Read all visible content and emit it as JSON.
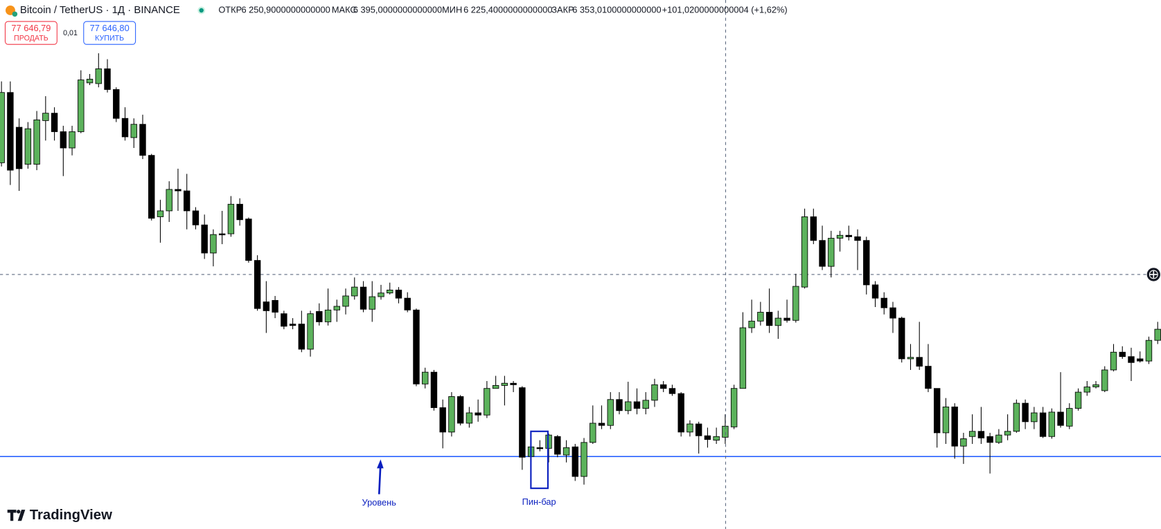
{
  "header": {
    "symbol": "Bitcoin / TetherUS · 1Д · BINANCE",
    "open_label": "ОТКР",
    "open": "6 250,9000000000000",
    "high_label": "МАКС",
    "high": "6 395,0000000000000",
    "low_label": "МИН",
    "low": "6 225,4000000000000",
    "close_label": "ЗАКР",
    "close": "6 353,0100000000000",
    "change": "+101,0200000000004 (+1,62%)"
  },
  "trade": {
    "sell_price": "77 646,79",
    "sell_label": "ПРОДАТЬ",
    "spread": "0,01",
    "buy_price": "77 646,80",
    "buy_label": "КУПИТЬ"
  },
  "brand": "TradingView",
  "chart_data": {
    "type": "candlestick",
    "up_color": "#5cb25c",
    "down_color": "#000000",
    "ylim": [
      300,
      1000
    ],
    "level": 383,
    "level_color": "#2962ff",
    "level_label": "Уровень",
    "pattern_label": "Пин-бар",
    "crosshair": 629,
    "ohlc": [
      [
        780,
        890,
        775,
        875
      ],
      [
        875,
        890,
        750,
        770
      ],
      [
        828,
        840,
        742,
        772
      ],
      [
        778,
        835,
        772,
        826
      ],
      [
        778,
        850,
        770,
        838
      ],
      [
        837,
        870,
        810,
        847
      ],
      [
        847,
        855,
        810,
        822
      ],
      [
        822,
        830,
        762,
        800
      ],
      [
        800,
        830,
        790,
        822
      ],
      [
        822,
        905,
        820,
        892
      ],
      [
        888,
        900,
        885,
        893
      ],
      [
        887,
        928,
        882,
        907
      ],
      [
        907,
        920,
        875,
        879
      ],
      [
        879,
        882,
        835,
        840
      ],
      [
        840,
        855,
        810,
        815
      ],
      [
        814,
        840,
        800,
        832
      ],
      [
        832,
        845,
        785,
        790
      ],
      [
        790,
        792,
        702,
        705
      ],
      [
        707,
        730,
        672,
        715
      ],
      [
        715,
        755,
        700,
        744
      ],
      [
        744,
        772,
        715,
        742
      ],
      [
        742,
        765,
        690,
        715
      ],
      [
        715,
        720,
        690,
        696
      ],
      [
        696,
        710,
        650,
        658
      ],
      [
        658,
        690,
        640,
        683
      ],
      [
        684,
        715,
        670,
        683
      ],
      [
        684,
        735,
        680,
        724
      ],
      [
        724,
        732,
        695,
        703
      ],
      [
        704,
        706,
        645,
        648
      ],
      [
        648,
        655,
        580,
        583
      ],
      [
        592,
        620,
        550,
        580
      ],
      [
        594,
        600,
        570,
        578
      ],
      [
        576,
        580,
        555,
        559
      ],
      [
        562,
        570,
        555,
        560
      ],
      [
        562,
        580,
        524,
        528
      ],
      [
        528,
        580,
        518,
        576
      ],
      [
        579,
        590,
        560,
        565
      ],
      [
        565,
        610,
        560,
        581
      ],
      [
        581,
        595,
        565,
        586
      ],
      [
        586,
        610,
        575,
        600
      ],
      [
        600,
        625,
        595,
        612
      ],
      [
        612,
        620,
        578,
        582
      ],
      [
        582,
        620,
        565,
        599
      ],
      [
        599,
        615,
        595,
        604
      ],
      [
        604,
        618,
        602,
        608
      ],
      [
        608,
        612,
        590,
        597
      ],
      [
        597,
        605,
        578,
        581
      ],
      [
        581,
        583,
        478,
        481
      ],
      [
        481,
        503,
        475,
        497
      ],
      [
        497,
        500,
        445,
        449
      ],
      [
        449,
        460,
        394,
        416
      ],
      [
        416,
        470,
        410,
        464
      ],
      [
        464,
        466,
        425,
        428
      ],
      [
        428,
        450,
        422,
        442
      ],
      [
        442,
        460,
        430,
        439
      ],
      [
        439,
        485,
        435,
        475
      ],
      [
        475,
        492,
        475,
        479
      ],
      [
        479,
        492,
        452,
        482
      ],
      [
        482,
        485,
        470,
        480
      ],
      [
        476,
        478,
        365,
        382
      ],
      [
        383,
        408,
        375,
        396
      ],
      [
        395,
        405,
        390,
        394
      ],
      [
        394,
        414,
        375,
        412
      ],
      [
        410,
        412,
        382,
        386
      ],
      [
        385,
        405,
        375,
        395
      ],
      [
        396,
        400,
        350,
        356
      ],
      [
        356,
        408,
        345,
        402
      ],
      [
        402,
        452,
        400,
        428
      ],
      [
        428,
        452,
        420,
        425
      ],
      [
        425,
        470,
        420,
        460
      ],
      [
        460,
        470,
        440,
        445
      ],
      [
        445,
        484,
        440,
        457
      ],
      [
        457,
        475,
        440,
        448
      ],
      [
        448,
        470,
        440,
        459
      ],
      [
        459,
        488,
        450,
        480
      ],
      [
        480,
        485,
        470,
        475
      ],
      [
        475,
        480,
        465,
        468
      ],
      [
        468,
        470,
        410,
        416
      ],
      [
        416,
        432,
        410,
        427
      ],
      [
        427,
        430,
        387,
        411
      ],
      [
        411,
        422,
        395,
        406
      ],
      [
        405,
        422,
        400,
        410
      ],
      [
        409,
        440,
        400,
        424
      ],
      [
        423,
        480,
        420,
        475
      ],
      [
        475,
        578,
        475,
        557
      ],
      [
        557,
        595,
        550,
        566
      ],
      [
        566,
        592,
        560,
        578
      ],
      [
        578,
        610,
        550,
        560
      ],
      [
        560,
        580,
        542,
        570
      ],
      [
        570,
        595,
        564,
        567
      ],
      [
        567,
        630,
        564,
        613
      ],
      [
        612,
        718,
        610,
        707
      ],
      [
        707,
        718,
        670,
        675
      ],
      [
        675,
        695,
        635,
        640
      ],
      [
        640,
        688,
        625,
        678
      ],
      [
        678,
        688,
        660,
        682
      ],
      [
        682,
        695,
        675,
        680
      ],
      [
        680,
        690,
        635,
        675
      ],
      [
        675,
        680,
        602,
        615
      ],
      [
        615,
        620,
        585,
        597
      ],
      [
        597,
        605,
        575,
        584
      ],
      [
        584,
        592,
        550,
        570
      ],
      [
        570,
        572,
        510,
        515
      ],
      [
        515,
        535,
        500,
        517
      ],
      [
        517,
        565,
        500,
        505
      ],
      [
        505,
        535,
        470,
        475
      ],
      [
        475,
        475,
        395,
        415
      ],
      [
        415,
        462,
        400,
        450
      ],
      [
        450,
        455,
        380,
        397
      ],
      [
        397,
        415,
        373,
        407
      ],
      [
        410,
        440,
        400,
        417
      ],
      [
        417,
        450,
        400,
        408
      ],
      [
        410,
        415,
        360,
        402
      ],
      [
        402,
        420,
        400,
        412
      ],
      [
        412,
        440,
        405,
        417
      ],
      [
        417,
        460,
        415,
        455
      ],
      [
        455,
        460,
        420,
        430
      ],
      [
        430,
        450,
        420,
        442
      ],
      [
        442,
        450,
        408,
        410
      ],
      [
        410,
        448,
        407,
        443
      ],
      [
        443,
        497,
        422,
        425
      ],
      [
        424,
        455,
        420,
        448
      ],
      [
        448,
        475,
        445,
        470
      ],
      [
        470,
        485,
        465,
        477
      ],
      [
        477,
        485,
        475,
        480
      ],
      [
        472,
        505,
        470,
        500
      ],
      [
        500,
        535,
        498,
        524
      ],
      [
        524,
        532,
        515,
        518
      ],
      [
        518,
        530,
        485,
        510
      ],
      [
        515,
        525,
        510,
        512
      ],
      [
        512,
        545,
        508,
        540
      ],
      [
        540,
        565,
        535,
        555
      ]
    ]
  }
}
